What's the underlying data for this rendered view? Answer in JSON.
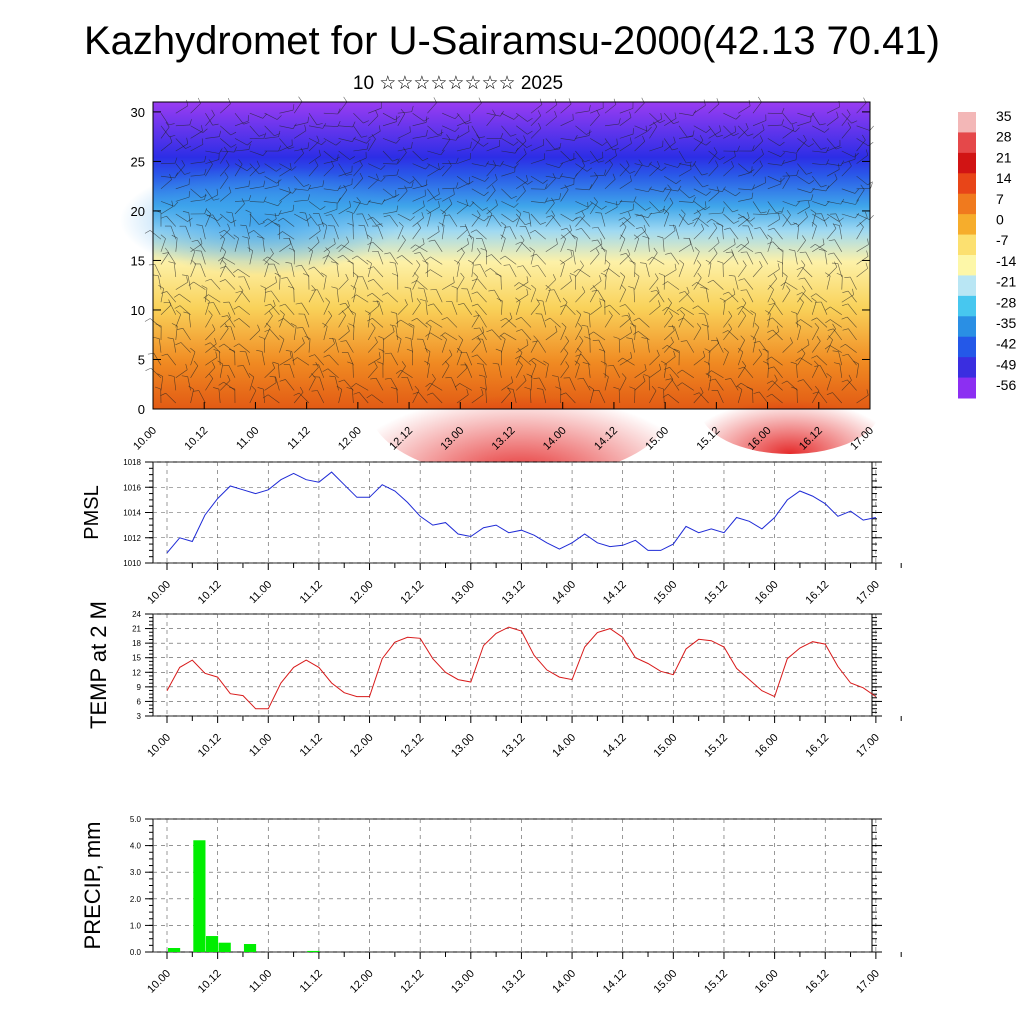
{
  "page": {
    "title": "Kazhydromet for U-Sairamsu-2000(42.13 70.41)",
    "subtitle": "10 ☆☆☆☆☆☆☆☆ 2025"
  },
  "chart_data": [
    {
      "id": "profile",
      "type": "heatmap",
      "description_of_fill": "temperature vs height with wind barbs",
      "ylim": [
        0,
        31
      ],
      "yticks": [
        "0",
        "5",
        "10",
        "15",
        "20",
        "25",
        "30"
      ],
      "xticks": [
        "10.00",
        "10.12",
        "11.00",
        "11.12",
        "12.00",
        "12.12",
        "13.00",
        "13.12",
        "14.00",
        "14.12",
        "15.00",
        "15.12",
        "16.00",
        "16.12",
        "17.00"
      ],
      "colorbar": {
        "labels": [
          "35",
          "28",
          "21",
          "14",
          "7",
          "0",
          "-7",
          "-14",
          "-21",
          "-28",
          "-35",
          "-42",
          "-49",
          "-56"
        ],
        "colors": [
          "#f3b7b7",
          "#e5484a",
          "#d11414",
          "#e84518",
          "#f07a1e",
          "#f6ad2c",
          "#fce070",
          "#fdf7a8",
          "#b9e6f4",
          "#47c7ef",
          "#2a8fe4",
          "#2458e8",
          "#3a2ee0",
          "#8c2ff2"
        ]
      }
    },
    {
      "id": "pmsl",
      "type": "line",
      "ylabel": "PMSL",
      "ylim": [
        1010,
        1018
      ],
      "yticks": [
        "1010",
        "1012",
        "1014",
        "1016",
        "1018"
      ],
      "xticks": [
        "10.00",
        "10.12",
        "11.00",
        "11.12",
        "12.00",
        "12.12",
        "13.00",
        "13.12",
        "14.00",
        "14.12",
        "15.00",
        "15.12",
        "16.00",
        "16.12",
        "17.00"
      ],
      "series": [
        {
          "color": "#1f2bd6",
          "values": [
            1010.8,
            1012.0,
            1011.7,
            1013.8,
            1015.1,
            1016.1,
            1015.8,
            1015.5,
            1015.8,
            1016.6,
            1017.1,
            1016.6,
            1016.4,
            1017.2,
            1016.2,
            1015.2,
            1015.2,
            1016.2,
            1015.7,
            1014.8,
            1013.7,
            1013.0,
            1013.2,
            1012.3,
            1012.1,
            1012.8,
            1013.0,
            1012.4,
            1012.6,
            1012.2,
            1011.6,
            1011.1,
            1011.6,
            1012.3,
            1011.6,
            1011.3,
            1011.4,
            1011.8,
            1011.0,
            1011.0,
            1011.5,
            1012.9,
            1012.4,
            1012.7,
            1012.4,
            1013.6,
            1013.3,
            1012.7,
            1013.6,
            1015.0,
            1015.7,
            1015.3,
            1014.7,
            1013.7,
            1014.1,
            1013.4,
            1013.6
          ]
        }
      ]
    },
    {
      "id": "temp",
      "type": "line",
      "ylabel": "TEMP at 2 M",
      "ylim": [
        3,
        24
      ],
      "yticks": [
        "3",
        "6",
        "9",
        "12",
        "15",
        "18",
        "21",
        "24"
      ],
      "xticks": [
        "10.00",
        "10.12",
        "11.00",
        "11.12",
        "12.00",
        "12.12",
        "13.00",
        "13.12",
        "14.00",
        "14.12",
        "15.00",
        "15.12",
        "16.00",
        "16.12",
        "17.00"
      ],
      "series": [
        {
          "color": "#d81a1a",
          "values": [
            8.2,
            13.0,
            14.5,
            11.8,
            11.0,
            7.6,
            7.2,
            4.5,
            4.5,
            9.8,
            13.0,
            14.5,
            13.0,
            9.8,
            7.8,
            7.0,
            7.0,
            14.8,
            18.2,
            19.2,
            19.0,
            14.8,
            12.0,
            10.5,
            10.0,
            17.5,
            20.0,
            21.3,
            20.5,
            15.5,
            12.5,
            11.0,
            10.5,
            17.2,
            20.2,
            21.0,
            19.2,
            15.0,
            13.8,
            12.2,
            11.5,
            16.8,
            18.8,
            18.5,
            17.2,
            12.8,
            10.5,
            8.2,
            7.0,
            14.8,
            17.0,
            18.3,
            17.8,
            13.2,
            9.8,
            8.8,
            7.0
          ]
        }
      ]
    },
    {
      "id": "precip",
      "type": "bar",
      "ylabel": "PRECIP, mm",
      "ylim": [
        0,
        5
      ],
      "yticks": [
        "0.0",
        "1.0",
        "2.0",
        "3.0",
        "4.0",
        "5.0"
      ],
      "xticks": [
        "10.00",
        "10.12",
        "11.00",
        "11.12",
        "12.00",
        "12.12",
        "13.00",
        "13.12",
        "14.00",
        "14.12",
        "15.00",
        "15.12",
        "16.00",
        "16.12",
        "17.00"
      ],
      "series": [
        {
          "color": "#00ee00",
          "values": [
            0,
            0.15,
            0,
            4.2,
            0.6,
            0.35,
            0,
            0.3,
            0,
            0,
            0,
            0,
            0.04,
            0,
            0,
            0,
            0,
            0,
            0,
            0,
            0,
            0,
            0,
            0,
            0,
            0,
            0,
            0,
            0,
            0,
            0,
            0,
            0,
            0,
            0,
            0,
            0,
            0,
            0,
            0,
            0,
            0,
            0,
            0,
            0,
            0,
            0,
            0,
            0,
            0,
            0,
            0,
            0,
            0,
            0,
            0,
            0
          ]
        }
      ]
    }
  ]
}
